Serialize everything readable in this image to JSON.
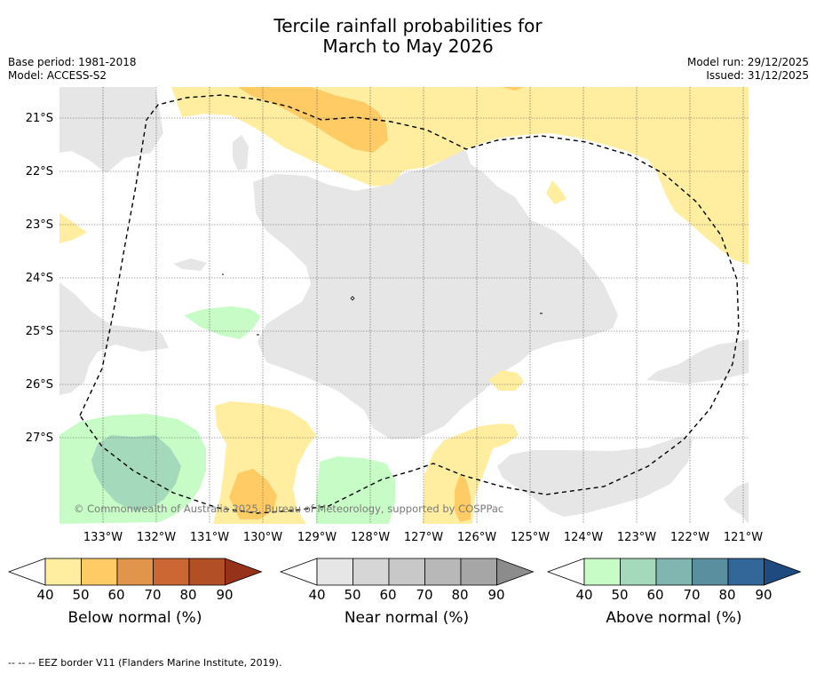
{
  "title_line1": "Tercile rainfall probabilities for",
  "title_line2": "March to May 2026",
  "base_period": "Base period: 1981-2018",
  "model": "Model: ACCESS-S2",
  "model_run": "Model run: 29/12/2025",
  "issued": "Issued: 31/12/2025",
  "copyright": "© Commonwealth of Australia 2025, Bureau of Meteorology, supported by COSPPac",
  "footer": "--  --  -- EEZ border V11 (Flanders Marine Institute, 2019).",
  "lat_labels": [
    "21°S",
    "22°S",
    "23°S",
    "24°S",
    "25°S",
    "26°S",
    "27°S"
  ],
  "lon_labels": [
    "133°W",
    "132°W",
    "131°W",
    "130°W",
    "129°W",
    "128°W",
    "127°W",
    "126°W",
    "125°W",
    "124°W",
    "123°W",
    "122°W",
    "121°W"
  ],
  "colorbars": [
    {
      "title": "Below normal (%)",
      "ticks": [
        "40",
        "50",
        "60",
        "70",
        "80",
        "90"
      ],
      "colors": [
        "#ffffff",
        "#ffeda0",
        "#fecb65",
        "#e0954a",
        "#cc6633",
        "#b34f26",
        "#96321a"
      ]
    },
    {
      "title": "Near normal (%)",
      "ticks": [
        "40",
        "50",
        "60",
        "70",
        "80",
        "90"
      ],
      "colors": [
        "#ffffff",
        "#e6e6e6",
        "#d6d6d6",
        "#c8c8c8",
        "#b8b8b8",
        "#a6a6a6",
        "#8c8c8c"
      ]
    },
    {
      "title": "Above normal (%)",
      "ticks": [
        "40",
        "50",
        "60",
        "70",
        "80",
        "90"
      ],
      "colors": [
        "#ffffff",
        "#c7fcc7",
        "#a4d9bc",
        "#80b5b0",
        "#5a8fa0",
        "#336699",
        "#1f4a80"
      ]
    }
  ],
  "colors": {
    "below50": "#ffeda0",
    "below60": "#fecb65",
    "near50": "#e6e6e6",
    "above50": "#c7fcc7",
    "above60": "#a4d9bc",
    "border": "#000000"
  }
}
